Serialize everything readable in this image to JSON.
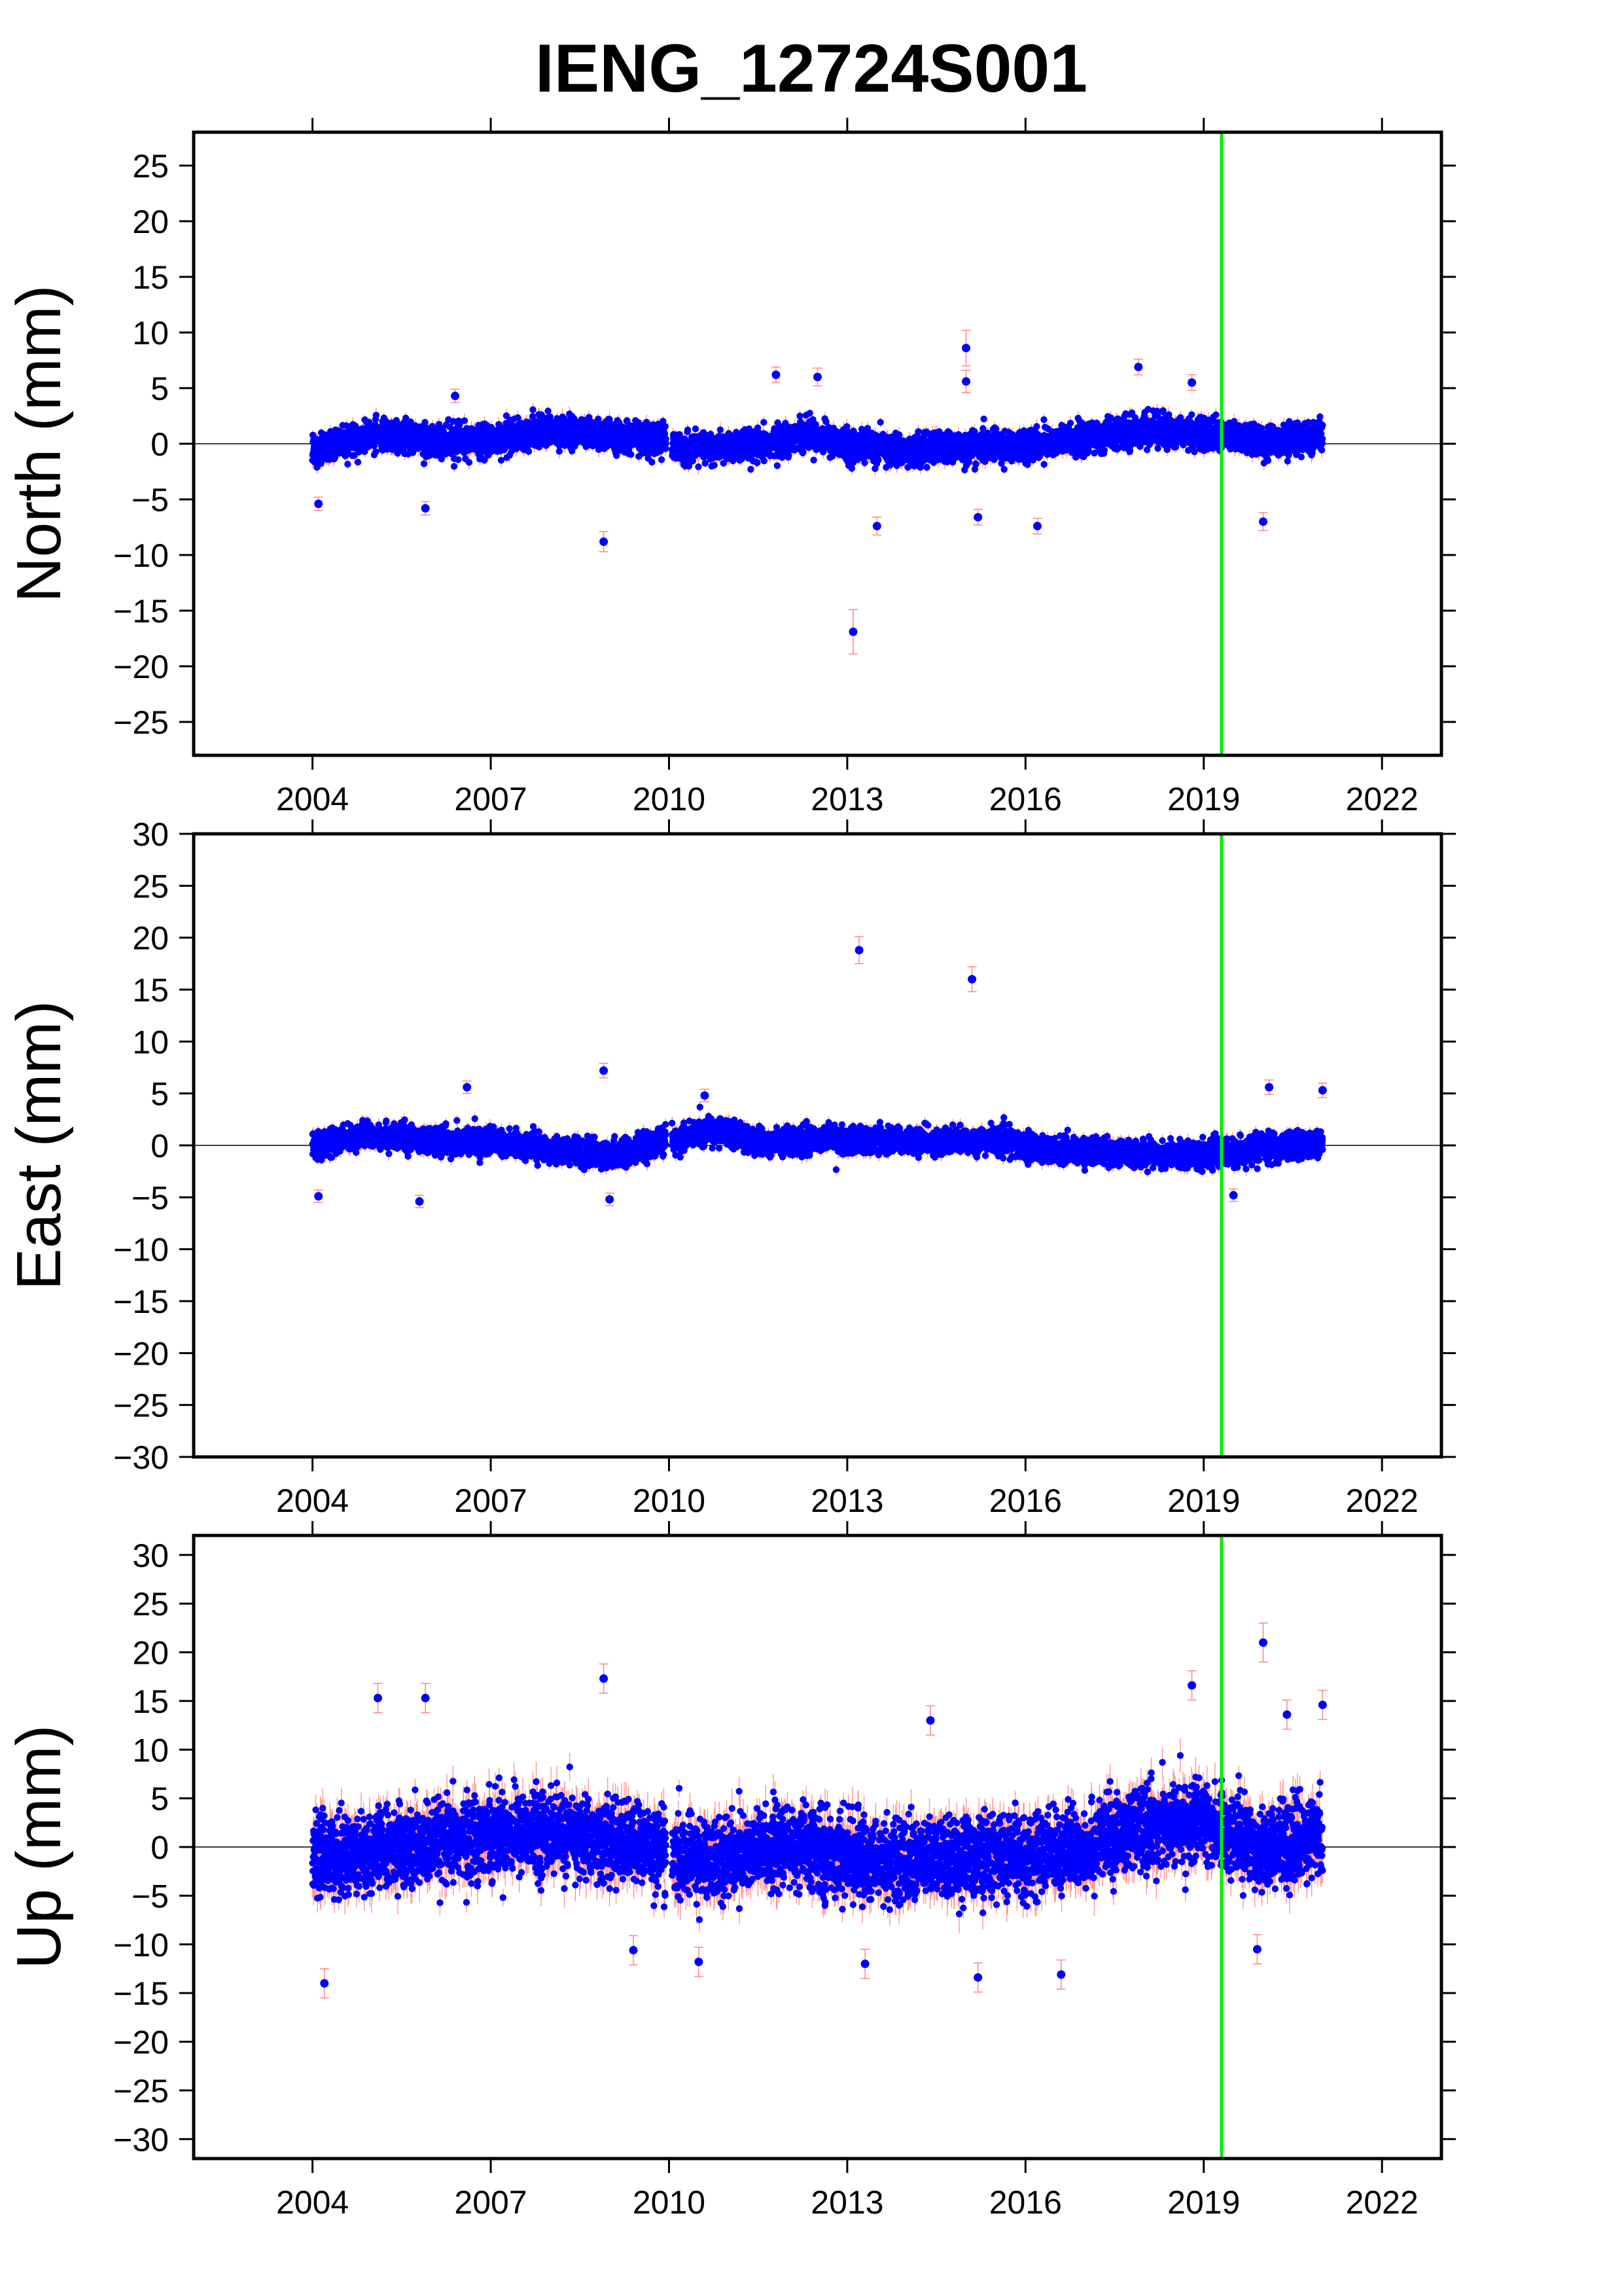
{
  "page": {
    "title": "IENG_12724S001"
  },
  "colors": {
    "point": "#0000ff",
    "error_bar": "#ff8c8c",
    "event_line": "#00ee00",
    "zero_line": "#000000"
  },
  "chart_data": [
    {
      "type": "scatter",
      "title": "",
      "xlabel": "",
      "ylabel": "North (mm)",
      "xlim": [
        2002.0,
        2023.0
      ],
      "ylim": [
        -28,
        28
      ],
      "x_ticks": [
        "2004",
        "2007",
        "2010",
        "2013",
        "2016",
        "2019",
        "2022"
      ],
      "y_ticks": [
        "25",
        "20",
        "15",
        "10",
        "5",
        "0",
        "−5",
        "−10",
        "−15",
        "−20",
        "−25"
      ],
      "x_tick_values": [
        2004,
        2007,
        2010,
        2013,
        2016,
        2019,
        2022
      ],
      "y_tick_values": [
        25,
        20,
        15,
        10,
        5,
        0,
        -5,
        -10,
        -15,
        -20,
        -25
      ],
      "grid": false,
      "zero_line": true,
      "event_line_x": 2019.3,
      "band": {
        "x_start": 2004.0,
        "x_end": 2021.0,
        "gap": [
          2009.95,
          2010.05
        ],
        "spread": 1.2,
        "error": 0.5,
        "mean": [
          [
            2004.0,
            -0.8
          ],
          [
            2005.0,
            0.8
          ],
          [
            2006.0,
            0.3
          ],
          [
            2007.0,
            0.2
          ],
          [
            2008.0,
            1.3
          ],
          [
            2009.0,
            0.7
          ],
          [
            2009.9,
            0.5
          ],
          [
            2010.1,
            -0.5
          ],
          [
            2011.5,
            -0.3
          ],
          [
            2012.3,
            1.0
          ],
          [
            2013.0,
            -0.2
          ],
          [
            2014.0,
            -0.6
          ],
          [
            2015.0,
            -0.3
          ],
          [
            2016.0,
            -0.2
          ],
          [
            2017.0,
            0.4
          ],
          [
            2018.0,
            1.3
          ],
          [
            2019.0,
            0.9
          ],
          [
            2020.0,
            0.2
          ],
          [
            2021.0,
            0.6
          ]
        ]
      },
      "outliers": [
        {
          "x": 2008.9,
          "y": -8.8,
          "err": 0.9
        },
        {
          "x": 2013.1,
          "y": -16.9,
          "err": 2.0
        },
        {
          "x": 2013.5,
          "y": -7.4,
          "err": 0.8
        },
        {
          "x": 2015.0,
          "y": 8.6,
          "err": 1.6
        },
        {
          "x": 2015.0,
          "y": 5.6,
          "err": 1.0
        },
        {
          "x": 2015.2,
          "y": -6.6,
          "err": 0.7
        },
        {
          "x": 2016.2,
          "y": -7.4,
          "err": 0.7
        },
        {
          "x": 2017.9,
          "y": 6.9,
          "err": 0.7
        },
        {
          "x": 2011.8,
          "y": 6.2,
          "err": 0.7
        },
        {
          "x": 2012.5,
          "y": 6.0,
          "err": 0.8
        },
        {
          "x": 2004.1,
          "y": -5.4,
          "err": 0.6
        },
        {
          "x": 2005.9,
          "y": -5.8,
          "err": 0.6
        },
        {
          "x": 2006.4,
          "y": 4.3,
          "err": 0.6
        },
        {
          "x": 2020.0,
          "y": -7.0,
          "err": 0.8
        },
        {
          "x": 2018.8,
          "y": 5.5,
          "err": 0.7
        }
      ]
    },
    {
      "type": "scatter",
      "title": "",
      "xlabel": "",
      "ylabel": "East (mm)",
      "xlim": [
        2002.0,
        2023.0
      ],
      "ylim": [
        -30,
        30
      ],
      "x_ticks": [
        "2004",
        "2007",
        "2010",
        "2013",
        "2016",
        "2019",
        "2022"
      ],
      "y_ticks": [
        "30",
        "25",
        "20",
        "15",
        "10",
        "5",
        "0",
        "−5",
        "−10",
        "−15",
        "−20",
        "−25",
        "−30"
      ],
      "x_tick_values": [
        2004,
        2007,
        2010,
        2013,
        2016,
        2019,
        2022
      ],
      "y_tick_values": [
        30,
        25,
        20,
        15,
        10,
        5,
        0,
        -5,
        -10,
        -15,
        -20,
        -25,
        -30
      ],
      "grid": false,
      "zero_line": true,
      "event_line_x": 2019.3,
      "band": {
        "x_start": 2004.0,
        "x_end": 2021.0,
        "gap": [
          2009.95,
          2010.05
        ],
        "spread": 1.1,
        "error": 0.5,
        "mean": [
          [
            2004.0,
            0.0
          ],
          [
            2005.0,
            1.0
          ],
          [
            2006.0,
            0.4
          ],
          [
            2007.0,
            0.4
          ],
          [
            2008.0,
            -0.3
          ],
          [
            2009.0,
            -1.0
          ],
          [
            2009.9,
            0.3
          ],
          [
            2010.1,
            0.5
          ],
          [
            2010.8,
            1.5
          ],
          [
            2011.5,
            0.3
          ],
          [
            2012.5,
            0.6
          ],
          [
            2013.5,
            0.5
          ],
          [
            2014.5,
            0.4
          ],
          [
            2015.5,
            0.5
          ],
          [
            2016.5,
            -0.5
          ],
          [
            2017.5,
            -0.6
          ],
          [
            2018.5,
            -1.0
          ],
          [
            2019.5,
            -0.7
          ],
          [
            2020.5,
            0.0
          ],
          [
            2021.0,
            0.3
          ]
        ]
      },
      "outliers": [
        {
          "x": 2013.2,
          "y": 18.8,
          "err": 1.3
        },
        {
          "x": 2015.1,
          "y": 16.0,
          "err": 1.2
        },
        {
          "x": 2008.9,
          "y": 7.2,
          "err": 0.7
        },
        {
          "x": 2009.0,
          "y": -5.2,
          "err": 0.6
        },
        {
          "x": 2004.1,
          "y": -4.9,
          "err": 0.6
        },
        {
          "x": 2005.8,
          "y": -5.4,
          "err": 0.6
        },
        {
          "x": 2006.6,
          "y": 5.6,
          "err": 0.6
        },
        {
          "x": 2010.6,
          "y": 4.8,
          "err": 0.6
        },
        {
          "x": 2020.1,
          "y": 5.6,
          "err": 0.7
        },
        {
          "x": 2021.0,
          "y": 5.3,
          "err": 0.7
        },
        {
          "x": 2019.5,
          "y": -4.8,
          "err": 0.6
        }
      ]
    },
    {
      "type": "scatter",
      "title": "",
      "xlabel": "",
      "ylabel": "Up (mm)",
      "xlim": [
        2002.0,
        2023.0
      ],
      "ylim": [
        -32,
        32
      ],
      "x_ticks": [
        "2004",
        "2007",
        "2010",
        "2013",
        "2016",
        "2019",
        "2022"
      ],
      "y_ticks": [
        "30",
        "25",
        "20",
        "15",
        "10",
        "5",
        "0",
        "−5",
        "−10",
        "−15",
        "−20",
        "−25",
        "−30"
      ],
      "x_tick_values": [
        2004,
        2007,
        2010,
        2013,
        2016,
        2019,
        2022
      ],
      "y_tick_values": [
        30,
        25,
        20,
        15,
        10,
        5,
        0,
        -5,
        -10,
        -15,
        -20,
        -25,
        -30
      ],
      "grid": false,
      "zero_line": true,
      "event_line_x": 2019.3,
      "band": {
        "x_start": 2004.0,
        "x_end": 2021.0,
        "gap": [
          2009.95,
          2010.05
        ],
        "spread": 3.6,
        "error": 1.5,
        "mean": [
          [
            2004.0,
            -1.0
          ],
          [
            2005.0,
            -0.5
          ],
          [
            2006.0,
            0.0
          ],
          [
            2007.0,
            1.5
          ],
          [
            2008.0,
            1.5
          ],
          [
            2009.0,
            0.5
          ],
          [
            2009.9,
            0.0
          ],
          [
            2010.1,
            -1.5
          ],
          [
            2011.0,
            -1.0
          ],
          [
            2012.0,
            0.0
          ],
          [
            2013.0,
            -1.0
          ],
          [
            2014.0,
            -1.5
          ],
          [
            2015.0,
            -1.0
          ],
          [
            2016.0,
            -1.0
          ],
          [
            2017.0,
            0.0
          ],
          [
            2018.0,
            2.0
          ],
          [
            2019.0,
            2.5
          ],
          [
            2020.0,
            0.0
          ],
          [
            2021.0,
            1.0
          ]
        ]
      },
      "outliers": [
        {
          "x": 2008.9,
          "y": 17.3,
          "err": 1.5
        },
        {
          "x": 2020.0,
          "y": 21.0,
          "err": 2.0
        },
        {
          "x": 2005.1,
          "y": 15.3,
          "err": 1.5
        },
        {
          "x": 2005.9,
          "y": 15.3,
          "err": 1.5
        },
        {
          "x": 2018.8,
          "y": 16.6,
          "err": 1.5
        },
        {
          "x": 2014.4,
          "y": 13.0,
          "err": 1.5
        },
        {
          "x": 2020.4,
          "y": 13.6,
          "err": 1.5
        },
        {
          "x": 2021.0,
          "y": 14.6,
          "err": 1.5
        },
        {
          "x": 2004.2,
          "y": -14.0,
          "err": 1.5
        },
        {
          "x": 2015.2,
          "y": -13.4,
          "err": 1.5
        },
        {
          "x": 2016.6,
          "y": -13.1,
          "err": 1.5
        },
        {
          "x": 2013.3,
          "y": -12.0,
          "err": 1.5
        },
        {
          "x": 2010.5,
          "y": -11.8,
          "err": 1.5
        },
        {
          "x": 2019.9,
          "y": -10.5,
          "err": 1.5
        },
        {
          "x": 2009.4,
          "y": -10.6,
          "err": 1.5
        }
      ]
    }
  ]
}
